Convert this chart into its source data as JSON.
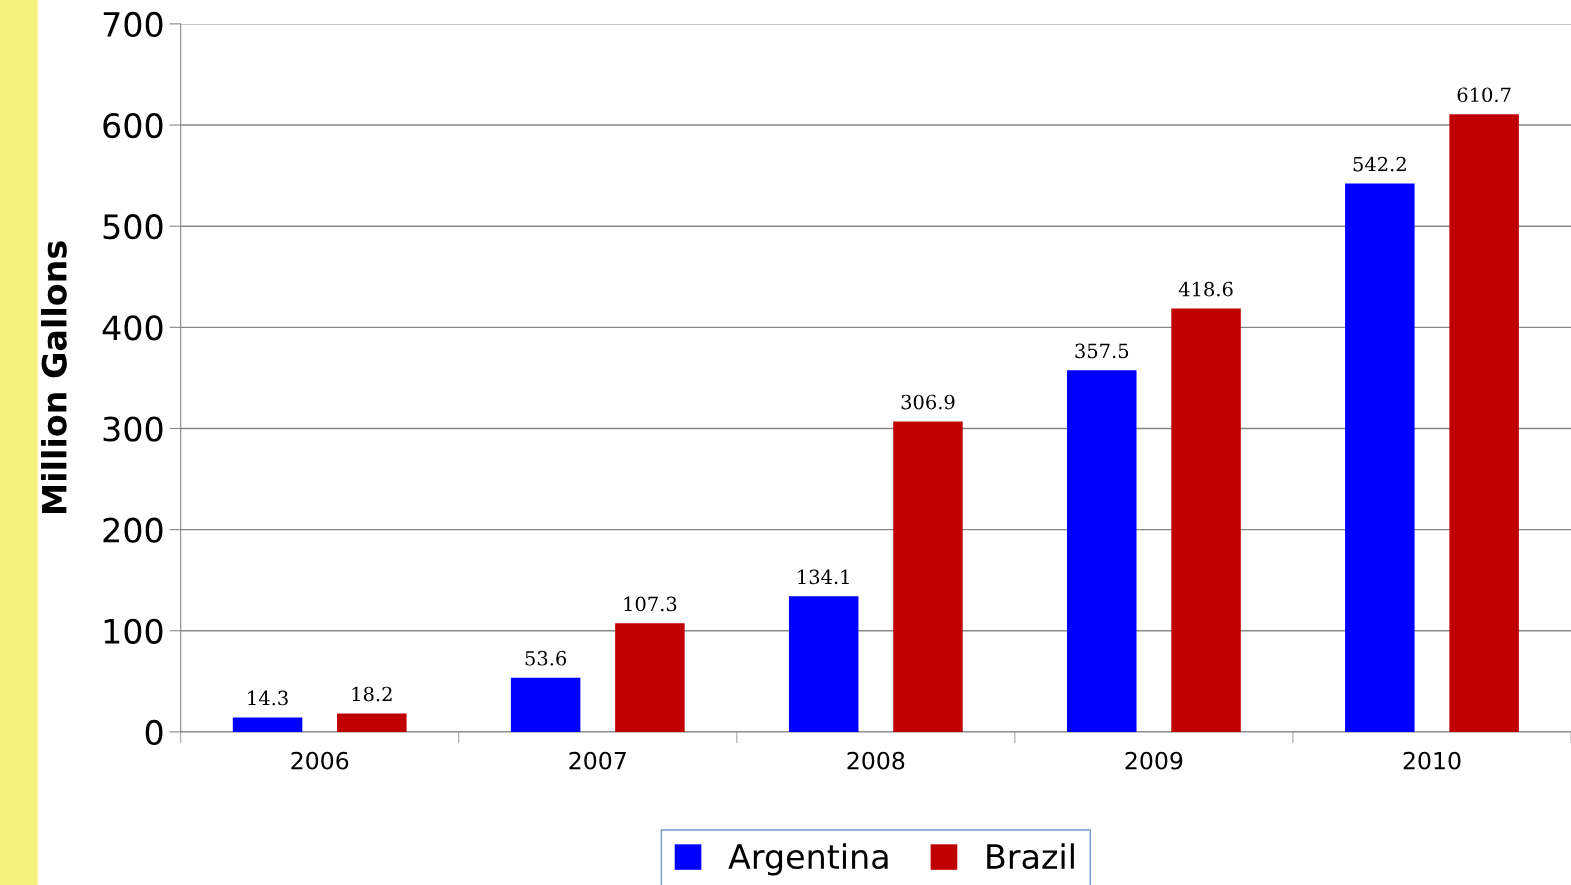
{
  "chart_data": {
    "type": "bar",
    "ylabel": "Million Gallons",
    "categories": [
      "2006",
      "2007",
      "2008",
      "2009",
      "2010"
    ],
    "series": [
      {
        "name": "Argentina",
        "color": "#0000ff",
        "values": [
          14.3,
          53.6,
          134.1,
          357.5,
          542.2
        ]
      },
      {
        "name": "Brazil",
        "color": "#c00000",
        "values": [
          18.2,
          107.3,
          306.9,
          418.6,
          610.7
        ]
      }
    ],
    "ylim": [
      0,
      700
    ],
    "yticks": [
      0,
      100,
      200,
      300,
      400,
      500,
      600,
      700
    ],
    "grid": "y",
    "legend": "bottom",
    "data_labels": true
  }
}
